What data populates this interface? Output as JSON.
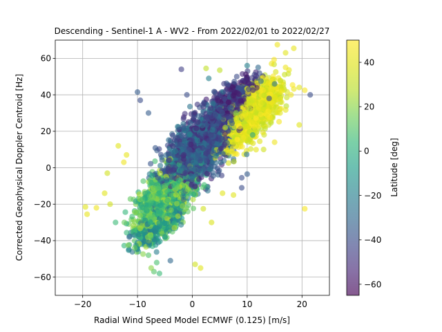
{
  "chart_data": {
    "type": "scatter",
    "title": "Descending - Sentinel-1 A - WV2 - From 2022/02/01 to 2022/02/27",
    "xlabel": "Radial Wind Speed Model ECMWF (0.125) [m/s]",
    "ylabel": "Corrected Geophysical Doppler Centroid [Hz]",
    "xlim": [
      -25,
      25
    ],
    "ylim": [
      -70,
      70
    ],
    "xticks": [
      -20,
      -10,
      0,
      10,
      20
    ],
    "yticks": [
      -60,
      -40,
      -20,
      0,
      20,
      40,
      60
    ],
    "grid": true,
    "colorbar": {
      "label": "Latitude [deg]",
      "range": [
        -65,
        50
      ],
      "ticks": [
        -60,
        -40,
        -20,
        0,
        20,
        40
      ],
      "colormap": "viridis",
      "alpha": 0.6
    },
    "points_description": "several thousand points; y roughly increases with x (about 2.5 Hz per m/s); southern latitudes (dark purple) cluster near the center, low latitudes (teal/green) dominate x<0 and y<0, northern latitudes (yellow) dominate x>5 and y>20",
    "sample_points": [
      [
        -19.5,
        -21.5,
        40
      ],
      [
        -19.2,
        -25.5,
        42
      ],
      [
        -17.5,
        -22,
        45
      ],
      [
        -15.5,
        -3,
        35
      ],
      [
        -14,
        -30,
        5
      ],
      [
        -12,
        7,
        42
      ],
      [
        -10,
        41.5,
        -35
      ],
      [
        -9.5,
        37,
        -40
      ],
      [
        -8,
        30,
        -35
      ],
      [
        -7,
        -57,
        10
      ],
      [
        -6.5,
        -52,
        8
      ],
      [
        -4,
        -51,
        -30
      ],
      [
        -2,
        54,
        -45
      ],
      [
        -1,
        40,
        -40
      ],
      [
        0.5,
        -53,
        35
      ],
      [
        1.5,
        -55,
        40
      ],
      [
        2.5,
        54.5,
        30
      ],
      [
        5,
        53.5,
        30
      ],
      [
        10,
        56,
        -20
      ],
      [
        12,
        55,
        -30
      ],
      [
        15.5,
        67.5,
        45
      ],
      [
        17,
        63,
        40
      ],
      [
        17,
        55,
        45
      ],
      [
        18.5,
        65.5,
        42
      ],
      [
        19.5,
        44,
        40
      ],
      [
        19.5,
        23.5,
        40
      ],
      [
        20.5,
        42.5,
        48
      ],
      [
        20.5,
        -22.5,
        48
      ],
      [
        21.5,
        40,
        -40
      ],
      [
        12.5,
        47.5,
        -30
      ],
      [
        15,
        46,
        -25
      ],
      [
        -12.5,
        3,
        45
      ],
      [
        -13.5,
        12,
        40
      ],
      [
        -16,
        -14,
        40
      ],
      [
        -15,
        -20,
        35
      ],
      [
        -11.5,
        -38,
        -30
      ],
      [
        -10.5,
        -44,
        15
      ],
      [
        -8,
        -48,
        10
      ],
      [
        -7.5,
        -55,
        20
      ],
      [
        -6,
        -58,
        5
      ],
      [
        3.5,
        -30,
        38
      ],
      [
        5.5,
        -14,
        40
      ],
      [
        9,
        -11,
        -40
      ],
      [
        9,
        -5.5,
        -40
      ],
      [
        10,
        -3.5,
        -35
      ],
      [
        7.5,
        -15,
        40
      ],
      [
        2,
        -22.5,
        35
      ],
      [
        13,
        10,
        35
      ],
      [
        11,
        18,
        -5
      ],
      [
        8,
        30,
        20
      ],
      [
        6,
        22,
        30
      ],
      [
        15,
        14,
        45
      ],
      [
        16,
        30,
        40
      ],
      [
        18,
        40,
        45
      ],
      [
        14,
        38,
        -40
      ],
      [
        3,
        49,
        -20
      ]
    ]
  }
}
